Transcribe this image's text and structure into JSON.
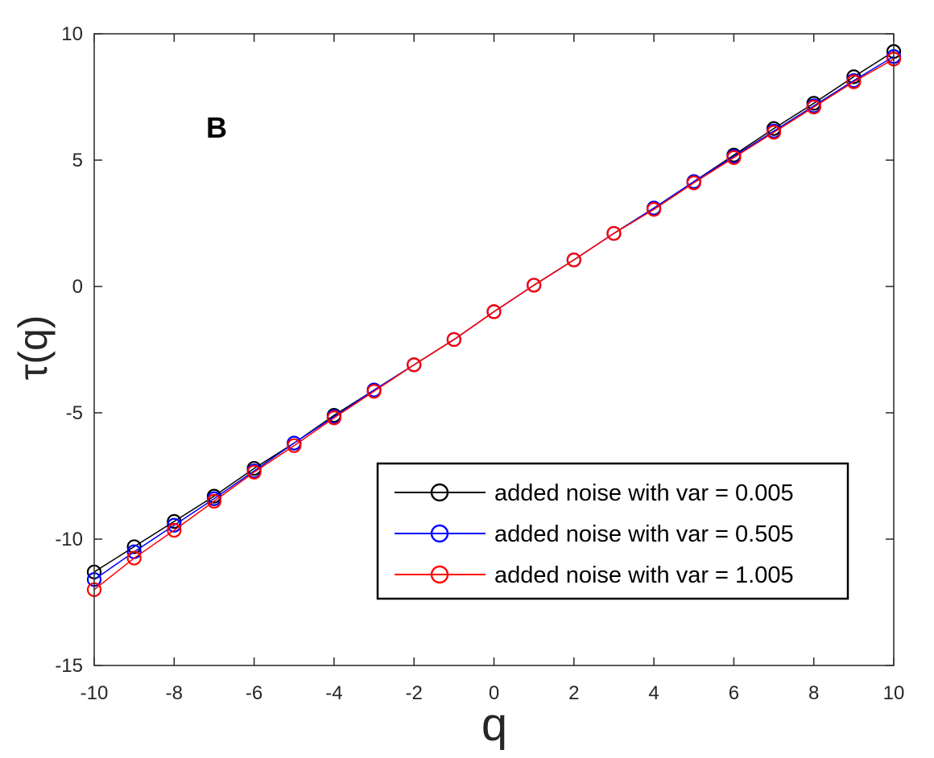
{
  "chart_data": {
    "type": "line",
    "panel_label": "B",
    "xlabel": "q",
    "ylabel": "τ(q)",
    "xlim": [
      -10,
      10
    ],
    "ylim": [
      -15,
      10
    ],
    "xticks": [
      -10,
      -8,
      -6,
      -4,
      -2,
      0,
      2,
      4,
      6,
      8,
      10
    ],
    "yticks": [
      -15,
      -10,
      -5,
      0,
      5,
      10
    ],
    "grid": false,
    "legend_position": "bottom-right",
    "marker": "open-circle",
    "x": [
      -10,
      -9,
      -8,
      -7,
      -6,
      -5,
      -4,
      -3,
      -2,
      -1,
      0,
      1,
      2,
      3,
      4,
      5,
      6,
      7,
      8,
      9,
      10
    ],
    "series": [
      {
        "name": "added noise with var = 0.005",
        "color": "#000000",
        "values": [
          -11.3,
          -10.3,
          -9.3,
          -8.3,
          -7.2,
          -6.2,
          -5.1,
          -4.1,
          -3.1,
          -2.1,
          -1.0,
          0.05,
          1.05,
          2.1,
          3.1,
          4.15,
          5.2,
          6.25,
          7.25,
          8.3,
          9.3
        ]
      },
      {
        "name": "added noise with var = 0.505",
        "color": "#0000ff",
        "values": [
          -11.6,
          -10.5,
          -9.45,
          -8.4,
          -7.3,
          -6.2,
          -5.15,
          -4.1,
          -3.1,
          -2.1,
          -1.0,
          0.05,
          1.05,
          2.1,
          3.1,
          4.15,
          5.15,
          6.15,
          7.15,
          8.15,
          9.1
        ]
      },
      {
        "name": "added noise with var = 1.005",
        "color": "#ff0000",
        "values": [
          -12.0,
          -10.75,
          -9.65,
          -8.5,
          -7.35,
          -6.3,
          -5.2,
          -4.15,
          -3.1,
          -2.1,
          -1.0,
          0.05,
          1.05,
          2.1,
          3.05,
          4.1,
          5.1,
          6.1,
          7.1,
          8.1,
          9.0
        ]
      }
    ]
  }
}
